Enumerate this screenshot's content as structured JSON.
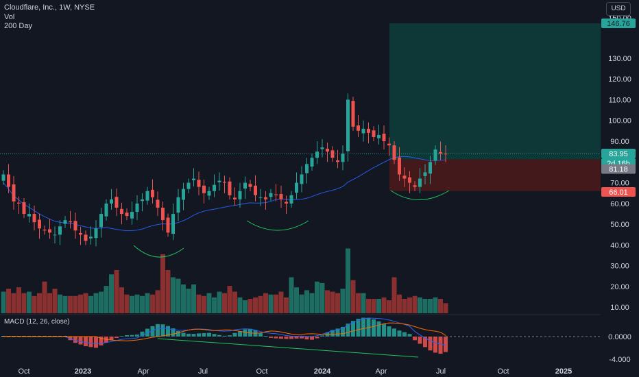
{
  "header": {
    "title": "Cloudflare, Inc., 1W, NYSE",
    "vol_label": "Vol",
    "ma_label": "200 Day",
    "currency_button": "USD"
  },
  "macd_label": "MACD (12, 26, close)",
  "colors": {
    "background": "#131722",
    "up": "#26a69a",
    "down": "#ef5350",
    "ma": "#2962ff",
    "target_zone": "#0d3c3a",
    "stop_zone": "#4a1a1c",
    "annotation": "#22c55e"
  },
  "chart_data": {
    "type": "candlestick",
    "title": "Cloudflare, Inc., 1W, NYSE",
    "price_axis": {
      "ticks": [
        "130.00",
        "120.00",
        "110.00",
        "100.00",
        "90.00",
        "70.00",
        "60.00",
        "50.00",
        "40.00",
        "30.00",
        "20.00",
        "10.00"
      ],
      "ylim": [
        5,
        150
      ]
    },
    "time_axis": {
      "labels": [
        "Oct",
        "2023",
        "Apr",
        "Jul",
        "Oct",
        "2024",
        "Apr",
        "Jul",
        "Oct",
        "2025"
      ]
    },
    "price_labels": {
      "target": "146.76",
      "current": "83.95",
      "countdown": "2d 16h",
      "entry": "81.18",
      "stop": "66.01",
      "top_partial": "150.00"
    },
    "macd": {
      "ticks": [
        "0.0000",
        "-4.000"
      ],
      "series_names": [
        "MACD",
        "Signal",
        "Histogram"
      ]
    },
    "closes": [
      74,
      68,
      61,
      60,
      55,
      55,
      51,
      48,
      47,
      46,
      45,
      49,
      52,
      51,
      47,
      45,
      42,
      44,
      48,
      55,
      60,
      62,
      58,
      55,
      54,
      56,
      60,
      62,
      66,
      63,
      58,
      52,
      46,
      55,
      63,
      67,
      70,
      72,
      68,
      65,
      66,
      69,
      71,
      70,
      64,
      62,
      66,
      70,
      68,
      64,
      63,
      62,
      65,
      64,
      62,
      60,
      64,
      70,
      74,
      79,
      82,
      85,
      87,
      85,
      82,
      80,
      84,
      110,
      97,
      95,
      96,
      94,
      92,
      93,
      90,
      88,
      81,
      74,
      72,
      70,
      68,
      72,
      75,
      80,
      86,
      84,
      83.95
    ],
    "volume_values": [
      15,
      17,
      14,
      18,
      14,
      15,
      12,
      14,
      22,
      14,
      17,
      13,
      12,
      12,
      12,
      13,
      14,
      12,
      14,
      15,
      19,
      27,
      30,
      18,
      13,
      12,
      13,
      12,
      14,
      13,
      16,
      41,
      30,
      25,
      24,
      20,
      17,
      20,
      13,
      12,
      14,
      11,
      15,
      14,
      19,
      15,
      11,
      9,
      10,
      11,
      12,
      14,
      13,
      13,
      15,
      11,
      25,
      18,
      13,
      16,
      14,
      22,
      21,
      16,
      15,
      14,
      17,
      45,
      23,
      14,
      14,
      10,
      10,
      10,
      11,
      9,
      25,
      13,
      10,
      11,
      12,
      11,
      10,
      10,
      11,
      10,
      7
    ]
  }
}
